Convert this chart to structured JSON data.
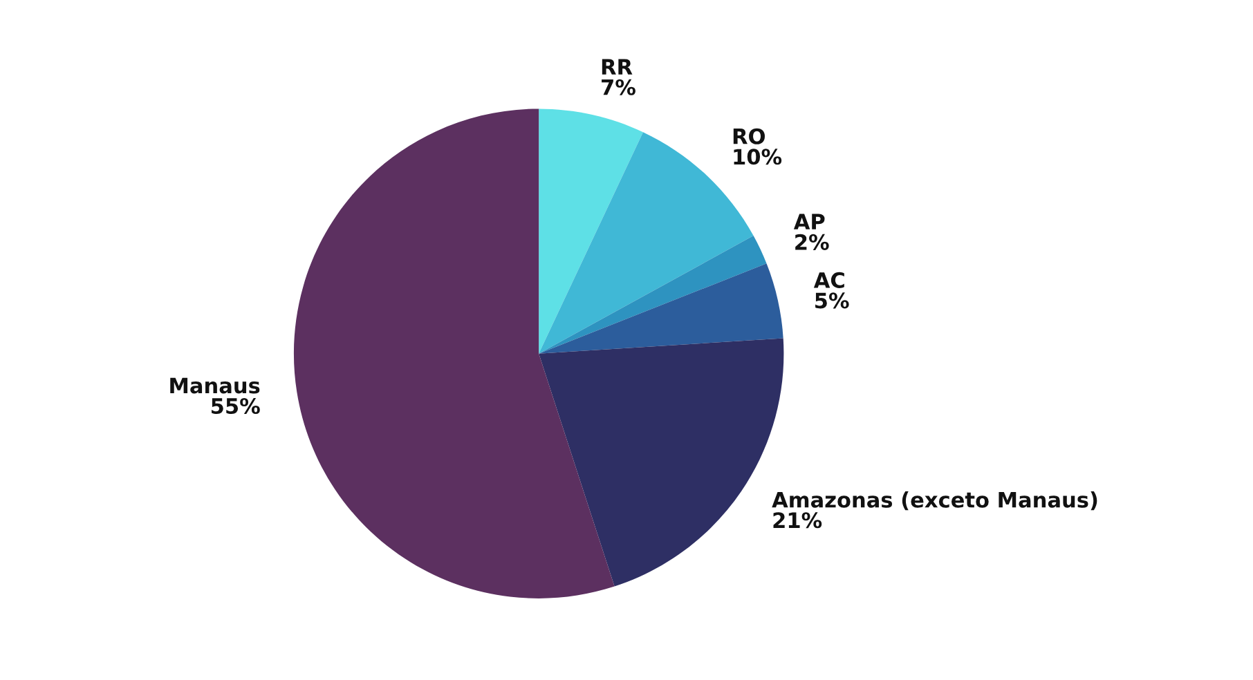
{
  "chart_data": {
    "type": "pie",
    "categories": [
      "RR",
      "RO",
      "AP",
      "AC",
      "Amazonas (exceto Manaus)",
      "Manaus"
    ],
    "values": [
      7,
      10,
      2,
      5,
      21,
      55
    ],
    "value_labels": [
      "7%",
      "10%",
      "2%",
      "5%",
      "21%",
      "55%"
    ],
    "colors": [
      "#5ee0e6",
      "#40b8d6",
      "#2e93c0",
      "#2c5d9c",
      "#2e2f64",
      "#5c3060"
    ]
  }
}
